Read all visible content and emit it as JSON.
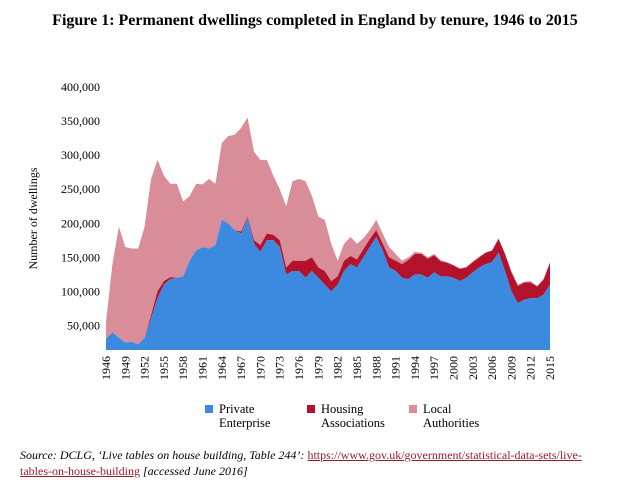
{
  "chart_data": {
    "type": "stacked-area",
    "title": "Figure 1: Permanent dwellings completed in England by tenure, 1946 to 2015",
    "y_label": "Number of dwellings",
    "x": [
      1946,
      1947,
      1948,
      1949,
      1950,
      1951,
      1952,
      1953,
      1954,
      1955,
      1956,
      1957,
      1958,
      1959,
      1960,
      1961,
      1962,
      1963,
      1964,
      1965,
      1966,
      1967,
      1968,
      1969,
      1970,
      1971,
      1972,
      1973,
      1974,
      1975,
      1976,
      1977,
      1978,
      1979,
      1980,
      1981,
      1982,
      1983,
      1984,
      1985,
      1986,
      1987,
      1988,
      1989,
      1990,
      1991,
      1992,
      1993,
      1994,
      1995,
      1996,
      1997,
      1998,
      1999,
      2000,
      2001,
      2002,
      2003,
      2004,
      2005,
      2006,
      2007,
      2008,
      2009,
      2010,
      2011,
      2012,
      2013,
      2014,
      2015
    ],
    "series": [
      {
        "name": "Private Enterprise",
        "color": "#3b8ae0",
        "values": [
          30000,
          40000,
          32000,
          25000,
          26000,
          22000,
          32000,
          60000,
          90000,
          110000,
          118000,
          120000,
          122000,
          145000,
          160000,
          165000,
          163000,
          168000,
          205000,
          200000,
          190000,
          185000,
          208000,
          170000,
          158000,
          175000,
          175000,
          165000,
          125000,
          130000,
          130000,
          120000,
          130000,
          120000,
          110000,
          100000,
          110000,
          130000,
          140000,
          135000,
          150000,
          165000,
          180000,
          160000,
          135000,
          130000,
          120000,
          118000,
          125000,
          125000,
          120000,
          128000,
          122000,
          122000,
          120000,
          115000,
          120000,
          128000,
          135000,
          140000,
          143000,
          157000,
          130000,
          100000,
          83000,
          88000,
          90000,
          90000,
          95000,
          110000
        ]
      },
      {
        "name": "Housing Associations",
        "color": "#b3122c",
        "values": [
          0,
          0,
          0,
          0,
          0,
          0,
          0,
          5000,
          10000,
          5000,
          3000,
          0,
          0,
          0,
          0,
          0,
          0,
          0,
          0,
          0,
          0,
          3000,
          2000,
          5000,
          10000,
          10000,
          8000,
          10000,
          10000,
          15000,
          15000,
          25000,
          20000,
          15000,
          20000,
          15000,
          12000,
          15000,
          12000,
          12000,
          12000,
          12000,
          10000,
          10000,
          15000,
          15000,
          20000,
          28000,
          30000,
          30000,
          28000,
          25000,
          22000,
          20000,
          18000,
          18000,
          15000,
          15000,
          15000,
          17000,
          17000,
          20000,
          25000,
          28000,
          25000,
          25000,
          23000,
          17000,
          22000,
          32000
        ]
      },
      {
        "name": "Local Authorities",
        "color": "#d88d99",
        "values": [
          25000,
          100000,
          163000,
          140000,
          137000,
          141000,
          163000,
          200000,
          193000,
          155000,
          137000,
          138000,
          110000,
          95000,
          98000,
          92000,
          102000,
          90000,
          113000,
          128000,
          140000,
          152000,
          145000,
          130000,
          125000,
          108000,
          87000,
          75000,
          90000,
          117000,
          120000,
          117000,
          90000,
          75000,
          75000,
          55000,
          23000,
          25000,
          28000,
          23000,
          16000,
          13000,
          15000,
          15000,
          15000,
          10000,
          5000,
          4000,
          3000,
          2000,
          2000,
          2000,
          2000,
          1000,
          1000,
          1000,
          1000,
          1000,
          1000,
          0,
          0,
          1000,
          1000,
          2000,
          2000,
          1000,
          2000,
          1000,
          2000,
          1000
        ]
      }
    ],
    "xlim": [
      1946,
      2015
    ],
    "xticks": [
      1946,
      1949,
      1952,
      1955,
      1958,
      1961,
      1964,
      1967,
      1970,
      1973,
      1976,
      1979,
      1982,
      1985,
      1988,
      1991,
      1994,
      1997,
      2000,
      2003,
      2006,
      2009,
      2012,
      2015
    ],
    "ylim": [
      14000,
      400000
    ],
    "yticks": [
      {
        "value": 50000,
        "label": "50,000"
      },
      {
        "value": 100000,
        "label": "100,000"
      },
      {
        "value": 150000,
        "label": "150,000"
      },
      {
        "value": 200000,
        "label": "200,000"
      },
      {
        "value": 250000,
        "label": "250,000"
      },
      {
        "value": 300000,
        "label": "300,000"
      },
      {
        "value": 350000,
        "label": "350,000"
      },
      {
        "value": 400000,
        "label": "400,000"
      }
    ],
    "grid": false,
    "legend": "bottom"
  },
  "source": {
    "text": "Source: DCLG, ‘Live tables on house building, Table 244’:",
    "link": "https://www.gov.uk/government/statistical-data-sets/live-tables-on-house-building",
    "note": "[accessed June 2016]"
  }
}
